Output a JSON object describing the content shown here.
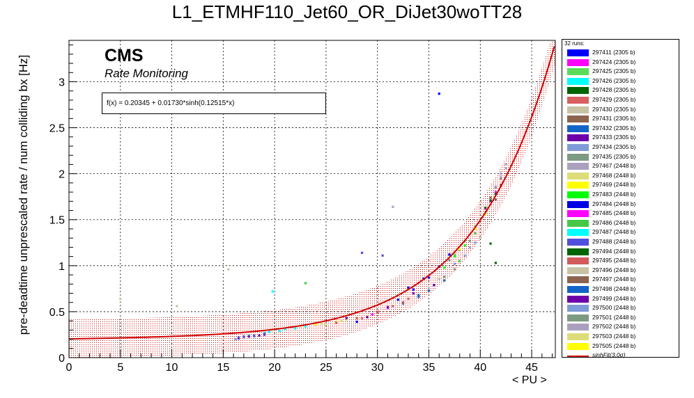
{
  "chart_data": {
    "type": "scatter",
    "title": "L1_ETMHF110_Jet60_OR_DiJet30woTT28",
    "xlabel": "< PU >",
    "ylabel": "pre-deadtime unprescaled rate / num colliding bx [Hz]",
    "xlim": [
      0,
      47.3
    ],
    "ylim": [
      0,
      3.45
    ],
    "x_ticks": [
      0,
      5,
      10,
      15,
      20,
      25,
      30,
      35,
      40,
      45
    ],
    "y_ticks": [
      0,
      0.5,
      1,
      1.5,
      2,
      2.5,
      3
    ],
    "grid": true,
    "cms_label": "CMS",
    "cms_sublabel": "Rate Monitoring",
    "fit_box_text": "f(x) = 0.20345 + 0.01730*sinh(0.12515*x)",
    "fit": {
      "a": 0.20345,
      "b": 0.0173,
      "c": 0.12515,
      "band_sigma": 0.21,
      "color": "#d00000"
    },
    "legend": {
      "header": "32 runs:",
      "position": "right",
      "fit_entry": "sinhFit(3.0σ)"
    },
    "series": [
      {
        "name": "297411 (2305 b)",
        "color": "#0000ff",
        "x": [
          28.0,
          30.0,
          32.0,
          33.5,
          35.0,
          36.0,
          37.0
        ],
        "y": [
          0.39,
          0.49,
          0.63,
          0.74,
          0.87,
          0.99,
          1.12
        ]
      },
      {
        "name": "297424 (2305 b)",
        "color": "#ff00ff",
        "x": [
          40.5,
          41.0,
          41.5
        ],
        "y": [
          1.62,
          1.7,
          1.8
        ]
      },
      {
        "name": "297425 (2305 b)",
        "color": "#5adc5a",
        "x": [
          37.5,
          38.5,
          39.5,
          40.5
        ],
        "y": [
          1.12,
          1.27,
          1.43,
          1.58
        ]
      },
      {
        "name": "297426 (2305 b)",
        "color": "#00ffff",
        "x": [
          17.5,
          19.5,
          21.0,
          23.0
        ],
        "y": [
          0.24,
          0.28,
          0.31,
          0.34
        ]
      },
      {
        "name": "297428 (2305 b)",
        "color": "#006400",
        "x": [
          40.5,
          41.0,
          41.5
        ],
        "y": [
          1.63,
          1.71,
          1.78
        ]
      },
      {
        "name": "297429 (2305 b)",
        "color": "#d86060",
        "x": [
          28.5,
          30.0,
          31.5,
          33.0
        ],
        "y": [
          0.43,
          0.49,
          0.56,
          0.64
        ]
      },
      {
        "name": "297430 (2305 b)",
        "color": "#c8c3a5",
        "x": [
          15.5,
          28.0,
          36.0
        ],
        "y": [
          0.96,
          0.43,
          0.86
        ]
      },
      {
        "name": "297431 (2305 b)",
        "color": "#8c6450",
        "x": [
          41.0,
          41.5,
          42.0
        ],
        "y": [
          1.74,
          1.85,
          1.95
        ]
      },
      {
        "name": "297432 (2305 b)",
        "color": "#1464c8",
        "x": [
          32.5,
          34.0,
          35.5
        ],
        "y": [
          0.59,
          0.68,
          0.79
        ]
      },
      {
        "name": "297433 (2305 b)",
        "color": "#6e00aa",
        "x": [
          16.5,
          17.5,
          18.5,
          19.0
        ],
        "y": [
          0.21,
          0.23,
          0.24,
          0.25
        ]
      },
      {
        "name": "297434 (2305 b)",
        "color": "#7f9bd7",
        "x": [
          16.2,
          17.0,
          18.0
        ],
        "y": [
          0.2,
          0.22,
          0.23
        ]
      },
      {
        "name": "297435 (2305 b)",
        "color": "#7d9b82",
        "x": [
          37.0,
          38.0,
          39.0
        ],
        "y": [
          1.06,
          1.17,
          1.27
        ]
      },
      {
        "name": "297467 (2448 b)",
        "color": "#aaa0be",
        "x": [
          41.5,
          42.0,
          42.5,
          31.5
        ],
        "y": [
          1.86,
          2.0,
          2.1,
          1.64
        ]
      },
      {
        "name": "297468 (2448 b)",
        "color": "#dcdc78",
        "x": [
          25.0,
          27.0,
          29.0
        ],
        "y": [
          0.36,
          0.41,
          0.45
        ]
      },
      {
        "name": "297469 (2448 b)",
        "color": "#ffff00",
        "x": [
          24.0,
          26.0,
          28.0
        ],
        "y": [
          0.36,
          0.39,
          0.43
        ]
      },
      {
        "name": "297483 (2448 b)",
        "color": "#00ff00",
        "x": [
          36.5,
          37.5,
          38.5
        ],
        "y": [
          0.98,
          1.1,
          1.22
        ]
      },
      {
        "name": "297484 (2448 b)",
        "color": "#0000e6",
        "x": [
          33.0,
          34.5,
          36.0,
          37.0,
          36.0
        ],
        "y": [
          0.76,
          0.86,
          0.99,
          1.12,
          2.87
        ]
      },
      {
        "name": "297485 (2448 b)",
        "color": "#ff00ff",
        "x": [
          29.5,
          31.0
        ],
        "y": [
          0.47,
          0.54
        ]
      },
      {
        "name": "297486 (2448 b)",
        "color": "#46c846",
        "x": [
          23.0,
          38.0,
          39.5
        ],
        "y": [
          0.81,
          1.05,
          1.35
        ]
      },
      {
        "name": "297487 (2448 b)",
        "color": "#00ffff",
        "x": [
          19.0,
          20.5,
          22.0,
          19.8
        ],
        "y": [
          0.27,
          0.29,
          0.32,
          0.72
        ]
      },
      {
        "name": "297488 (2448 b)",
        "color": "#5050dc",
        "x": [
          16.5,
          17.0,
          18.0,
          19.0,
          28.5,
          30.5
        ],
        "y": [
          0.22,
          0.23,
          0.24,
          0.26,
          1.14,
          1.11
        ]
      },
      {
        "name": "297494 (2448 b)",
        "color": "#006400",
        "x": [
          41.0,
          41.5
        ],
        "y": [
          1.24,
          1.03
        ]
      },
      {
        "name": "297495 (2448 b)",
        "color": "#d25a5a",
        "x": [
          26.0,
          28.0,
          30.0,
          32.5
        ],
        "y": [
          0.38,
          0.43,
          0.5,
          0.6
        ]
      },
      {
        "name": "297496 (2448 b)",
        "color": "#c8c3a5",
        "x": [
          40.0,
          10.5,
          5.0
        ],
        "y": [
          1.31,
          0.56,
          0.64
        ]
      },
      {
        "name": "297497 (2448 b)",
        "color": "#8c6450",
        "x": [
          41.5,
          42.0
        ],
        "y": [
          1.72,
          1.88
        ]
      },
      {
        "name": "297498 (2448 b)",
        "color": "#1464c8",
        "x": [
          34.0,
          35.0,
          36.5
        ],
        "y": [
          0.66,
          0.73,
          0.84
        ]
      },
      {
        "name": "297499 (2448 b)",
        "color": "#6e00aa",
        "x": [
          27.0,
          29.0,
          31.0,
          33.5,
          35.5
        ],
        "y": [
          0.43,
          0.44,
          0.55,
          0.7,
          0.79
        ]
      },
      {
        "name": "297500 (2448 b)",
        "color": "#7f9bd7",
        "x": [
          37.5,
          38.5,
          39.5
        ],
        "y": [
          1.02,
          1.11,
          1.25
        ]
      },
      {
        "name": "297501 (2448 b)",
        "color": "#7d9b82",
        "x": [
          36.5,
          37.5
        ],
        "y": [
          0.88,
          0.96
        ]
      },
      {
        "name": "297502 (2448 b)",
        "color": "#aaa0be",
        "x": [
          42.0,
          42.5,
          39.0
        ],
        "y": [
          1.96,
          2.06,
          1.2
        ]
      },
      {
        "name": "297503 (2448 b)",
        "color": "#dcdc78",
        "x": [
          22.5,
          24.5,
          26.5
        ],
        "y": [
          0.34,
          0.37,
          0.4
        ]
      },
      {
        "name": "297505 (2448 b)",
        "color": "#ffff00",
        "x": [
          38.0,
          39.5,
          40.5
        ],
        "y": [
          1.18,
          1.4,
          1.56
        ]
      }
    ]
  }
}
